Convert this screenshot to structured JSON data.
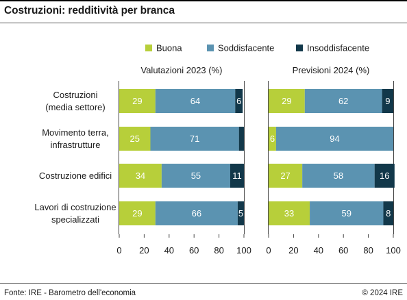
{
  "title": "Costruzioni: redditività per branca",
  "footer": {
    "source": "Fonte: IRE - Barometro dell'economia",
    "copyright": "© 2024 IRE"
  },
  "colors": {
    "Buona": "#b7cf3a",
    "Soddisfacente": "#5b93b1",
    "Insoddisfacente": "#12384a"
  },
  "chart_data": [
    {
      "type": "bar",
      "orientation": "horizontal",
      "stacked": true,
      "title": "Valutazioni 2023 (%)",
      "categories": [
        "Costruzioni\n(media settore)",
        "Movimento terra,\ninfrastrutture",
        "Costruzione edifici",
        "Lavori di costruzione\nspecializzati"
      ],
      "series": [
        {
          "name": "Buona",
          "values": [
            29,
            25,
            34,
            29
          ]
        },
        {
          "name": "Soddisfacente",
          "values": [
            64,
            71,
            55,
            66
          ]
        },
        {
          "name": "Insoddisfacente",
          "values": [
            6,
            4,
            11,
            5
          ]
        }
      ],
      "data_labels": [
        [
          "29",
          "25",
          "34",
          "29"
        ],
        [
          "64",
          "71",
          "55",
          "66"
        ],
        [
          "6",
          "",
          "11",
          "5"
        ]
      ],
      "xlim": [
        0,
        100
      ],
      "xticks": [
        0,
        20,
        40,
        60,
        80,
        100
      ],
      "legend": "top"
    },
    {
      "type": "bar",
      "orientation": "horizontal",
      "stacked": true,
      "title": "Previsioni 2024 (%)",
      "categories": [
        "Costruzioni\n(media settore)",
        "Movimento terra,\ninfrastrutture",
        "Costruzione edifici",
        "Lavori di costruzione\nspecializzati"
      ],
      "series": [
        {
          "name": "Buona",
          "values": [
            29,
            6,
            27,
            33
          ]
        },
        {
          "name": "Soddisfacente",
          "values": [
            62,
            94,
            58,
            59
          ]
        },
        {
          "name": "Insoddisfacente",
          "values": [
            9,
            0,
            16,
            8
          ]
        }
      ],
      "data_labels": [
        [
          "29",
          "6",
          "27",
          "33"
        ],
        [
          "62",
          "94",
          "58",
          "59"
        ],
        [
          "9",
          "",
          "16",
          "8"
        ]
      ],
      "xlim": [
        0,
        100
      ],
      "xticks": [
        0,
        20,
        40,
        60,
        80,
        100
      ],
      "legend": "top"
    }
  ]
}
